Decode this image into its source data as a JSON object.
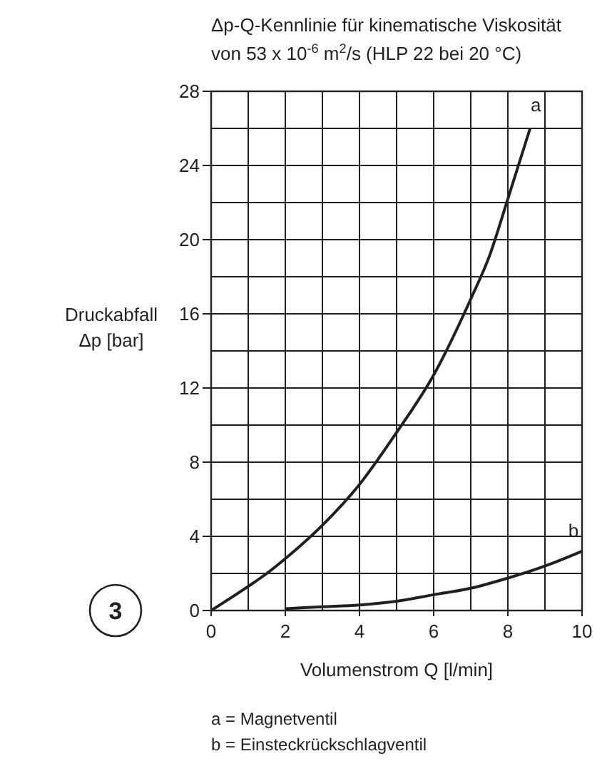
{
  "chart_data": {
    "type": "line",
    "title": "Δp-Q-Kennlinie für kinematische Viskosität",
    "subtitle": "von 53 x 10$^{-6}$ m$^{2}$/s (HLP 22 bei 20 °C)",
    "xlabel": "Volumenstrom Q [l/min]",
    "ylabel": "Druckabfall\nΔp [bar]",
    "xlim": [
      0,
      10
    ],
    "xticks": [
      0,
      {
        "value": 1,
        "label": null
      },
      2,
      {
        "value": 3,
        "label": null
      },
      4,
      {
        "value": 5,
        "label": null
      },
      6,
      {
        "value": 7,
        "label": null
      },
      8,
      {
        "value": 9,
        "label": null
      },
      10
    ],
    "ylim": [
      0,
      28
    ],
    "yticks": [
      0,
      {
        "value": 2,
        "label": null
      },
      4,
      {
        "value": 6,
        "label": null
      },
      8,
      {
        "value": 10,
        "label": null
      },
      12,
      {
        "value": 14,
        "label": null
      },
      16,
      {
        "value": 18,
        "label": null
      },
      20,
      {
        "value": 22,
        "label": null
      },
      24,
      {
        "value": 26,
        "label": null
      },
      28
    ],
    "grid": true,
    "marker": "none",
    "line_style": "solid",
    "series": [
      {
        "name": "a",
        "color": "#231f20",
        "x": [
          0,
          1,
          1.5,
          2,
          3,
          4,
          5,
          6,
          7,
          7.5,
          8,
          8.6
        ],
        "values": [
          0,
          1.3,
          2.0,
          2.8,
          4.6,
          6.8,
          9.6,
          12.7,
          16.8,
          19.1,
          22.2,
          26
        ]
      },
      {
        "name": "b",
        "color": "#231f20",
        "x": [
          2,
          3,
          4,
          5,
          6,
          7,
          8,
          9,
          10
        ],
        "values": [
          0.1,
          0.2,
          0.3,
          0.5,
          0.85,
          1.2,
          1.75,
          2.4,
          3.2
        ]
      }
    ],
    "annotations": [
      "a = Magnetventil",
      "b = Einsteckrückschlagventil",
      "3"
    ]
  }
}
